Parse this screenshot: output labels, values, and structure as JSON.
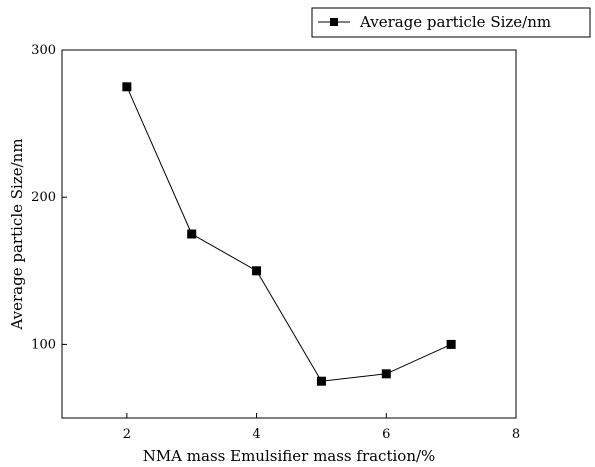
{
  "chart_data": {
    "type": "line",
    "title": "",
    "xlabel": "NMA mass Emulsifier mass fraction/%",
    "ylabel": "Average particle Size/nm",
    "xlim": [
      1,
      8
    ],
    "ylim": [
      50,
      300
    ],
    "x_ticks": [
      2,
      4,
      6,
      8
    ],
    "y_ticks": [
      100,
      200,
      300
    ],
    "grid": false,
    "legend_position": "top-right",
    "series": [
      {
        "name": "Average particle Size/nm",
        "x": [
          2,
          3,
          4,
          5,
          6,
          7
        ],
        "y": [
          275,
          175,
          150,
          75,
          80,
          100
        ],
        "marker": "square",
        "color": "#000000"
      }
    ]
  }
}
